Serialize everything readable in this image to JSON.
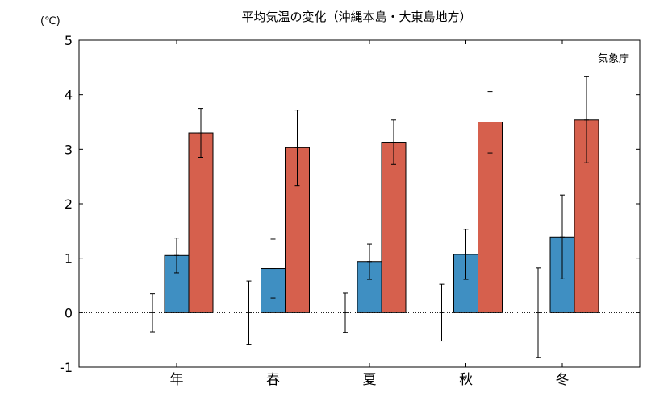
{
  "chart_data": {
    "type": "bar",
    "title": "平均気温の変化（沖縄本島・大東島地方）",
    "unit_label": "(℃)",
    "source_label": "気象庁",
    "categories": [
      "年",
      "春",
      "夏",
      "秋",
      "冬"
    ],
    "ylim": [
      -1,
      5
    ],
    "yticks": [
      -1,
      0,
      1,
      2,
      3,
      4,
      5
    ],
    "zero_line": "dotted",
    "series": [
      {
        "color": "#808080",
        "values": [
          0,
          0,
          0,
          0,
          0
        ],
        "error_low": [
          -0.35,
          -0.58,
          -0.36,
          -0.52,
          -0.82
        ],
        "error_high": [
          0.35,
          0.58,
          0.36,
          0.52,
          0.82
        ]
      },
      {
        "color": "#3f8fc2",
        "values": [
          1.05,
          0.81,
          0.94,
          1.07,
          1.39
        ],
        "error_low": [
          0.73,
          0.27,
          0.61,
          0.61,
          0.62
        ],
        "error_high": [
          1.37,
          1.35,
          1.26,
          1.53,
          2.16
        ]
      },
      {
        "color": "#d6604d",
        "values": [
          3.3,
          3.03,
          3.13,
          3.5,
          3.54
        ],
        "error_low": [
          2.85,
          2.33,
          2.72,
          2.93,
          2.75
        ],
        "error_high": [
          3.75,
          3.72,
          3.54,
          4.06,
          4.33
        ]
      }
    ]
  }
}
